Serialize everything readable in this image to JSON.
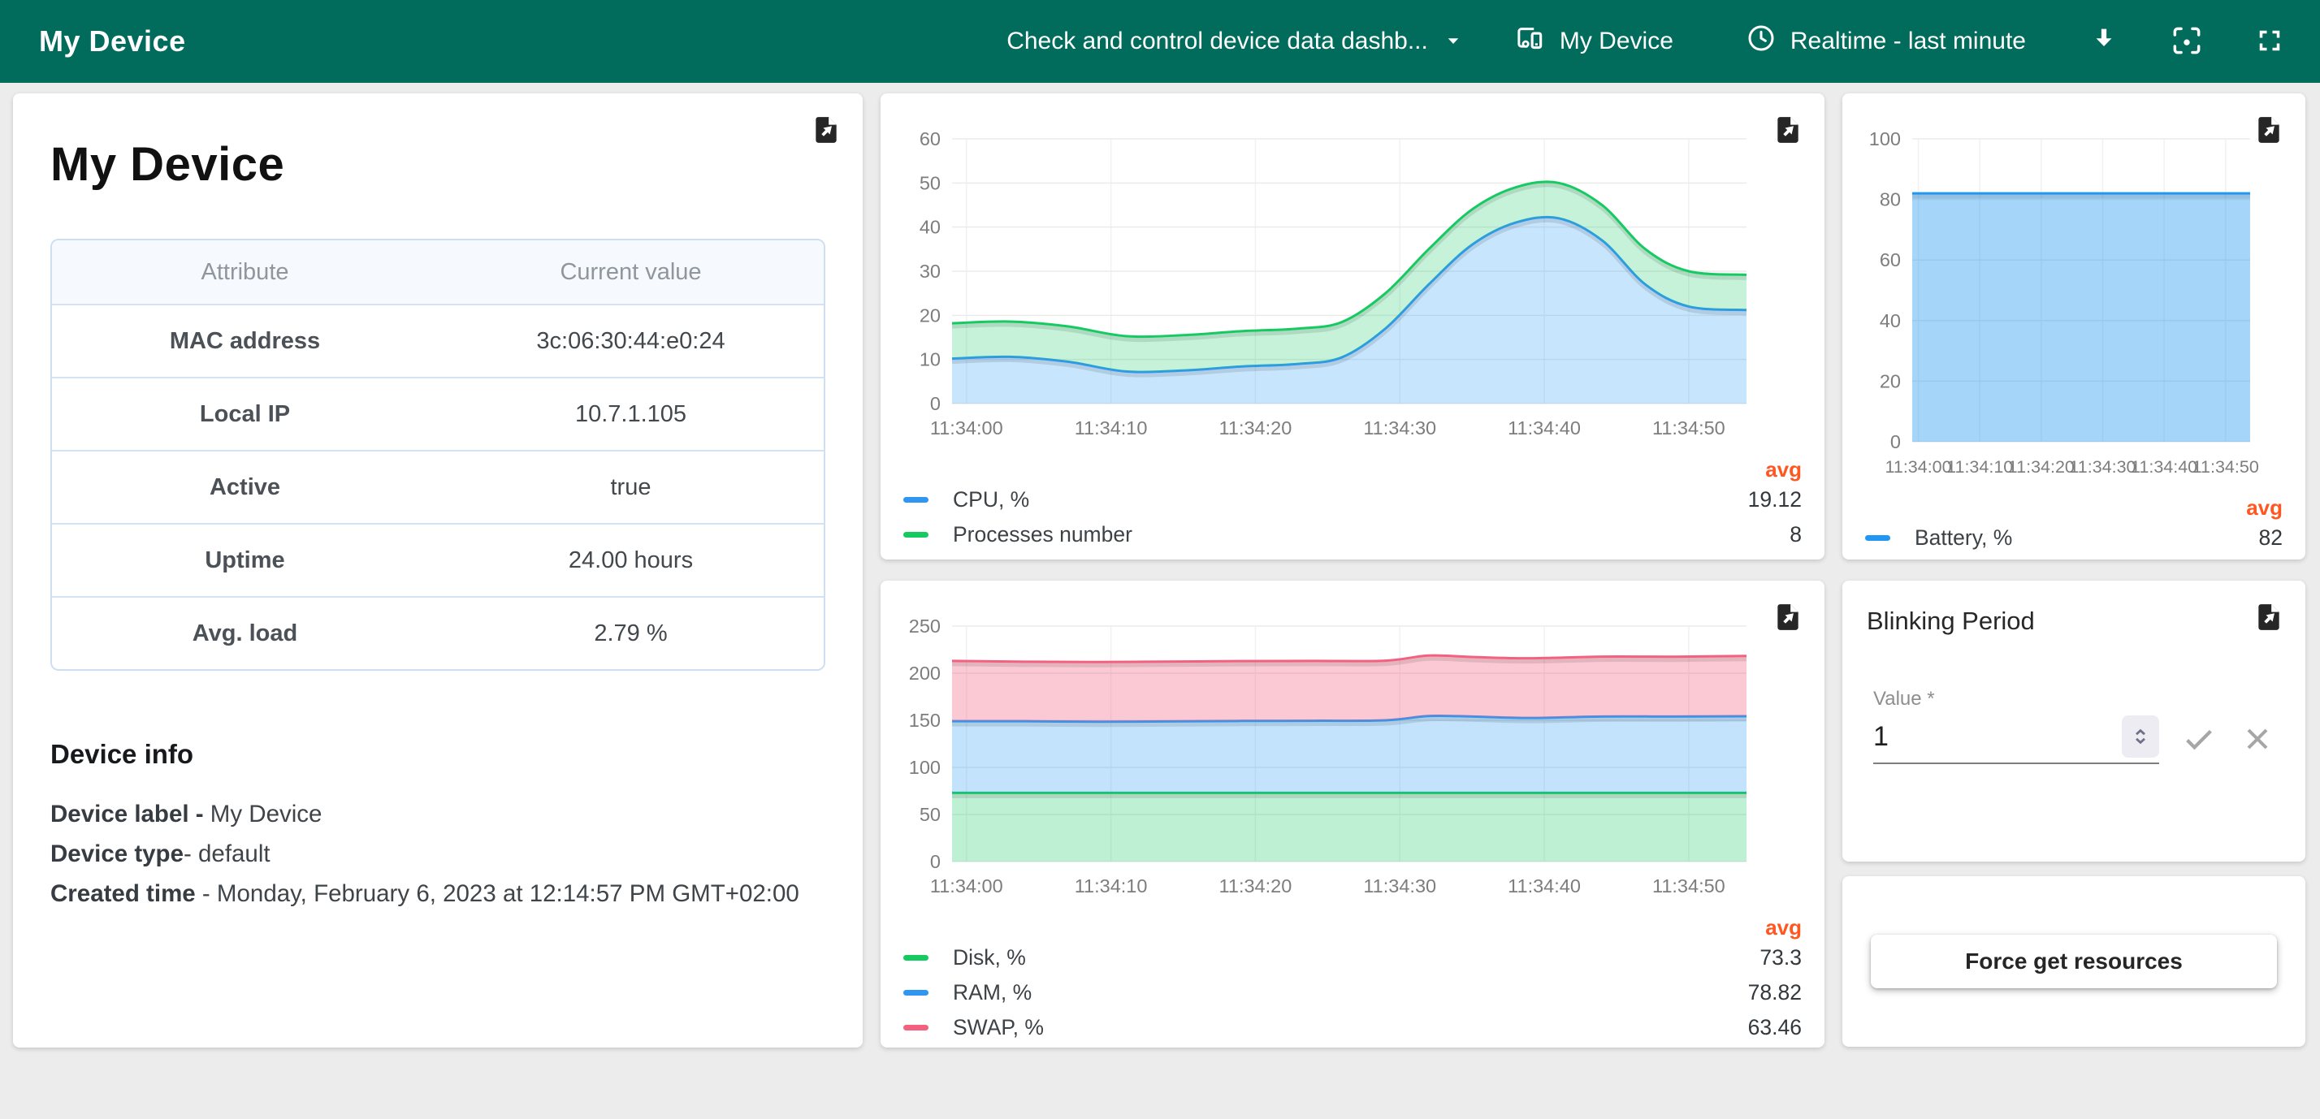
{
  "header": {
    "title": "My Device",
    "dashboard_select": "Check and control device data dashb...",
    "entity_label": "My Device",
    "timewindow": "Realtime - last minute"
  },
  "device_card": {
    "title": "My Device",
    "table": {
      "columns": [
        "Attribute",
        "Current value"
      ],
      "rows": [
        [
          "MAC address",
          "3c:06:30:44:e0:24"
        ],
        [
          "Local IP",
          "10.7.1.105"
        ],
        [
          "Active",
          "true"
        ],
        [
          "Uptime",
          "24.00 hours"
        ],
        [
          "Avg. load",
          "2.79 %"
        ]
      ]
    },
    "info": {
      "heading": "Device info",
      "label_key": "Device label - ",
      "label_value": " My Device",
      "type_key": "Device type",
      "type_value": "- default",
      "created_key": "Created time ",
      "created_value": "- Monday, February 6, 2023 at 12:14:57 PM GMT+02:00"
    }
  },
  "charts": {
    "avg_label": "avg"
  },
  "chart_data": [
    {
      "id": "cpu-chart",
      "type": "area",
      "stacked": true,
      "title": "",
      "x": [
        0,
        4,
        8,
        12,
        16,
        20,
        24,
        27,
        30,
        33,
        36,
        39,
        42,
        45,
        48,
        51,
        55
      ],
      "xlim": [
        0,
        55
      ],
      "ylim": [
        0,
        60
      ],
      "yticks": [
        0,
        10,
        20,
        30,
        40,
        50,
        60
      ],
      "xticks": [
        {
          "t": 1,
          "label": "11:34:00"
        },
        {
          "t": 11,
          "label": "11:34:10"
        },
        {
          "t": 21,
          "label": "11:34:20"
        },
        {
          "t": 31,
          "label": "11:34:30"
        },
        {
          "t": 41,
          "label": "11:34:40"
        },
        {
          "t": 51,
          "label": "11:34:50"
        }
      ],
      "series": [
        {
          "name": "CPU, %",
          "avg": "19.12",
          "color": "#2f97f1",
          "fill": "rgba(33,150,243,0.25)",
          "values": [
            10.2,
            10.6,
            9.5,
            7.3,
            7.5,
            8.4,
            9.0,
            10.5,
            17,
            27,
            36,
            41,
            42,
            37,
            27,
            22,
            21.2
          ]
        },
        {
          "name": "Processes number",
          "avg": "8",
          "color": "#16ca62",
          "fill": "rgba(22,202,98,0.25)",
          "values": [
            8,
            8,
            8,
            8,
            8,
            8,
            8,
            8,
            8,
            8,
            8,
            8,
            8,
            8,
            8,
            8,
            8
          ]
        }
      ]
    },
    {
      "id": "res-chart",
      "type": "area",
      "stacked": true,
      "title": "",
      "x": [
        0,
        5,
        10,
        15,
        20,
        25,
        30,
        33,
        36,
        40,
        45,
        50,
        55
      ],
      "xlim": [
        0,
        55
      ],
      "ylim": [
        0,
        250
      ],
      "yticks": [
        0,
        50,
        100,
        150,
        200,
        250
      ],
      "xticks": [
        {
          "t": 1,
          "label": "11:34:00"
        },
        {
          "t": 11,
          "label": "11:34:10"
        },
        {
          "t": 21,
          "label": "11:34:20"
        },
        {
          "t": 31,
          "label": "11:34:30"
        },
        {
          "t": 41,
          "label": "11:34:40"
        },
        {
          "t": 51,
          "label": "11:34:50"
        }
      ],
      "series": [
        {
          "name": "Disk, %",
          "avg": "73.3",
          "color": "#16ca62",
          "fill": "rgba(22,202,98,0.28)",
          "values": [
            73,
            73,
            73,
            73,
            73,
            73,
            73,
            73,
            73,
            73,
            73,
            73,
            73
          ]
        },
        {
          "name": "RAM, %",
          "avg": "78.82",
          "color": "#2f97f1",
          "fill": "rgba(33,150,243,0.27)",
          "values": [
            76,
            76,
            75.5,
            75.8,
            76.3,
            76.5,
            77,
            81.5,
            81,
            79.5,
            81,
            81,
            81.3
          ]
        },
        {
          "name": "SWAP, %",
          "avg": "63.46",
          "color": "#f4607f",
          "fill": "rgba(242,87,122,0.32)",
          "values": [
            64,
            63.2,
            63.4,
            63.5,
            63.5,
            63.5,
            63.3,
            64.2,
            63.2,
            63.3,
            63.6,
            63.5,
            64
          ]
        }
      ]
    },
    {
      "id": "battery-chart",
      "type": "area",
      "stacked": false,
      "title": "",
      "x": [
        0,
        55
      ],
      "xlim": [
        0,
        55
      ],
      "ylim": [
        0,
        100
      ],
      "yticks": [
        0,
        20,
        40,
        60,
        80,
        100
      ],
      "xticks": [
        {
          "t": 1,
          "label": "11:34:00"
        },
        {
          "t": 11,
          "label": "11:34:10"
        },
        {
          "t": 21,
          "label": "11:34:20"
        },
        {
          "t": 31,
          "label": "11:34:30"
        },
        {
          "t": 41,
          "label": "11:34:40"
        },
        {
          "t": 51,
          "label": "11:34:50"
        }
      ],
      "series": [
        {
          "name": "Battery, %",
          "avg": "82",
          "color": "#2196f3",
          "fill": "rgba(33,150,243,0.40)",
          "values": [
            82,
            82
          ]
        }
      ]
    }
  ],
  "blinking_card": {
    "title": "Blinking Period",
    "field_label": "Value *",
    "value": "1"
  },
  "resources_card": {
    "button_label": "Force get resources"
  }
}
